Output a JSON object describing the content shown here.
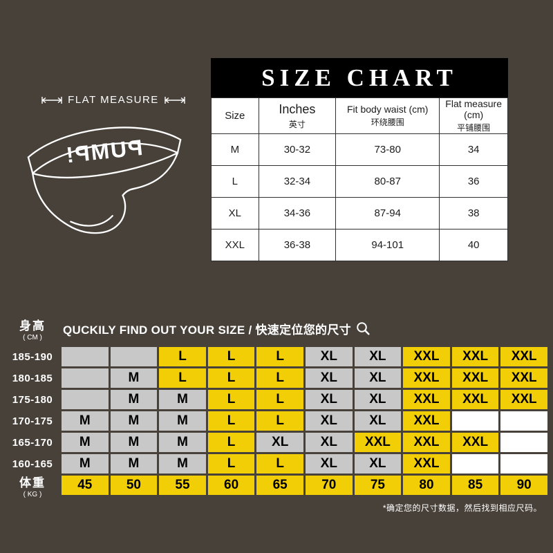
{
  "colors": {
    "background": "#48413a",
    "panel_black": "#000000",
    "table_white": "#ffffff",
    "highlight_yellow": "#f2ce06",
    "cell_gray": "#c8c8c8",
    "text_white": "#ffffff",
    "text_black": "#111111"
  },
  "top": {
    "flat_measure_label": "FLAT MEASURE",
    "brand_logo": "PUMP!"
  },
  "size_chart": {
    "title": "SIZE CHART",
    "columns": [
      {
        "en": "Size",
        "zh": ""
      },
      {
        "en": "Inches",
        "zh": "英寸"
      },
      {
        "en": "Fit body waist (cm)",
        "zh": "环绕腰围"
      },
      {
        "en": "Flat measure (cm)",
        "zh": "平铺腰围"
      }
    ],
    "rows": [
      [
        "M",
        "30-32",
        "73-80",
        "34"
      ],
      [
        "L",
        "32-34",
        "80-87",
        "36"
      ],
      [
        "XL",
        "34-36",
        "87-94",
        "38"
      ],
      [
        "XXL",
        "36-38",
        "94-101",
        "40"
      ]
    ]
  },
  "finder": {
    "title": "QUCKILY FIND OUT YOUR SIZE / 快速定位您的尺寸",
    "magnifier_icon": "magnifier",
    "height_label": "身高",
    "height_unit": "( CM )",
    "weight_label": "体重",
    "weight_unit": "( KG )",
    "heights": [
      "185-190",
      "180-185",
      "175-180",
      "170-175",
      "165-170",
      "160-165"
    ],
    "weights": [
      "45",
      "50",
      "55",
      "60",
      "65",
      "70",
      "75",
      "80",
      "85",
      "90"
    ],
    "matrix": [
      [
        "|g",
        "|g",
        "L|y",
        "L|y",
        "L|y",
        "XL|g",
        "XL|g",
        "XXL|y",
        "XXL|y",
        "XXL|y"
      ],
      [
        "|g",
        "M|g",
        "L|y",
        "L|y",
        "L|y",
        "XL|g",
        "XL|g",
        "XXL|y",
        "XXL|y",
        "XXL|y"
      ],
      [
        "|g",
        "M|g",
        "M|g",
        "L|y",
        "L|y",
        "XL|g",
        "XL|g",
        "XXL|y",
        "XXL|y",
        "XXL|y"
      ],
      [
        "M|g",
        "M|g",
        "M|g",
        "L|y",
        "L|y",
        "XL|g",
        "XL|g",
        "XXL|y",
        "|w",
        "|w"
      ],
      [
        "M|g",
        "M|g",
        "M|g",
        "L|y",
        "XL|g",
        "XL|g",
        "XXL|y",
        "XXL|y",
        "XXL|y",
        "|w"
      ],
      [
        "M|g",
        "M|g",
        "M|g",
        "L|y",
        "L|y",
        "XL|g",
        "XL|g",
        "XXL|y",
        "|w",
        "|w"
      ]
    ],
    "footnote": "*确定您的尺寸数据，然后找到相应尺码。"
  },
  "chart_data": [
    {
      "type": "table",
      "title": "SIZE CHART",
      "columns": [
        "Size",
        "Inches 英寸",
        "Fit body waist (cm) 环绕腰围",
        "Flat measure (cm) 平铺腰围"
      ],
      "rows": [
        [
          "M",
          "30-32",
          "73-80",
          "34"
        ],
        [
          "L",
          "32-34",
          "80-87",
          "36"
        ],
        [
          "XL",
          "34-36",
          "87-94",
          "38"
        ],
        [
          "XXL",
          "36-38",
          "94-101",
          "40"
        ]
      ]
    },
    {
      "type": "heatmap",
      "title": "QUCKILY FIND OUT YOUR SIZE / 快速定位您的尺寸",
      "ylabel": "身高 (CM)",
      "xlabel": "体重 (KG)",
      "y": [
        "185-190",
        "180-185",
        "175-180",
        "170-175",
        "165-170",
        "160-165"
      ],
      "x": [
        45,
        50,
        55,
        60,
        65,
        70,
        75,
        80,
        85,
        90
      ],
      "values": [
        [
          "",
          "",
          "L",
          "L",
          "L",
          "XL",
          "XL",
          "XXL",
          "XXL",
          "XXL"
        ],
        [
          "",
          "M",
          "L",
          "L",
          "L",
          "XL",
          "XL",
          "XXL",
          "XXL",
          "XXL"
        ],
        [
          "",
          "M",
          "M",
          "L",
          "L",
          "XL",
          "XL",
          "XXL",
          "XXL",
          "XXL"
        ],
        [
          "M",
          "M",
          "M",
          "L",
          "L",
          "XL",
          "XL",
          "XXL",
          "",
          ""
        ],
        [
          "M",
          "M",
          "M",
          "L",
          "XL",
          "XL",
          "XXL",
          "XXL",
          "XXL",
          ""
        ],
        [
          "M",
          "M",
          "M",
          "L",
          "L",
          "XL",
          "XL",
          "XXL",
          "",
          ""
        ]
      ]
    }
  ]
}
